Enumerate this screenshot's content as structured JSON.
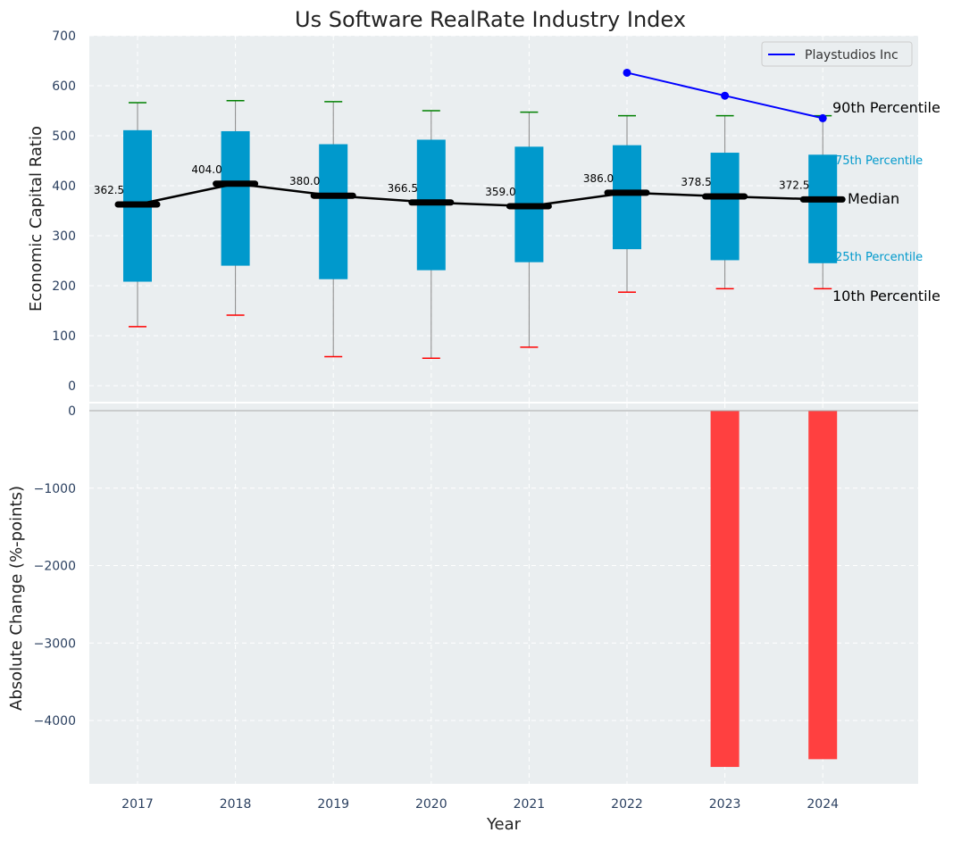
{
  "chart_data": [
    {
      "type": "box",
      "title": "Us Software RealRate Industry Index",
      "ylabel": "Economic Capital Ratio",
      "ylim": [
        0,
        700
      ],
      "yticks": [
        0,
        100,
        200,
        300,
        400,
        500,
        600,
        700
      ],
      "categories": [
        "2017",
        "2018",
        "2019",
        "2020",
        "2021",
        "2022",
        "2023",
        "2024"
      ],
      "p10": [
        118,
        141,
        58,
        55,
        77,
        187,
        194,
        194
      ],
      "p25": [
        208,
        240,
        213,
        231,
        247,
        273,
        251,
        245
      ],
      "median": [
        362.5,
        404.0,
        380.0,
        366.5,
        359.0,
        386.0,
        378.5,
        372.5
      ],
      "median_labels": [
        "362.5",
        "404.0",
        "380.0",
        "366.5",
        "359.0",
        "386.0",
        "378.5",
        "372.5"
      ],
      "p75": [
        511,
        509,
        483,
        492,
        478,
        481,
        466,
        462
      ],
      "p90": [
        566,
        570,
        568,
        550,
        547,
        540,
        540,
        540
      ],
      "series": [
        {
          "name": "Playstudios Inc",
          "x": [
            "2022",
            "2023",
            "2024"
          ],
          "values": [
            626,
            580,
            535
          ],
          "color": "#0000ff"
        }
      ],
      "annotations": {
        "p90": "90th Percentile",
        "p75": "75th Percentile",
        "median": "Median",
        "p25": "25th Percentile",
        "p10": "10th Percentile"
      },
      "grid": true,
      "legend_position": "top-right"
    },
    {
      "type": "bar",
      "ylabel": "Absolute Change (%-points)",
      "xlabel": "Year",
      "yticks": [
        0,
        -1000,
        -2000,
        -3000,
        -4000
      ],
      "ylim": [
        -4800,
        0
      ],
      "categories": [
        "2017",
        "2018",
        "2019",
        "2020",
        "2021",
        "2022",
        "2023",
        "2024"
      ],
      "values": [
        0,
        0,
        0,
        0,
        0,
        0,
        -4600,
        -4500
      ],
      "color": "#ff4040",
      "grid": true
    }
  ],
  "colors": {
    "plot_bg": "#eaeef0",
    "box": "#0099cc",
    "median_line": "#000000",
    "p90_cap": "#008000",
    "p10_cap": "#ff0000",
    "whisker": "#888888",
    "bar": "#ff4040",
    "company_line": "#0000ff"
  }
}
